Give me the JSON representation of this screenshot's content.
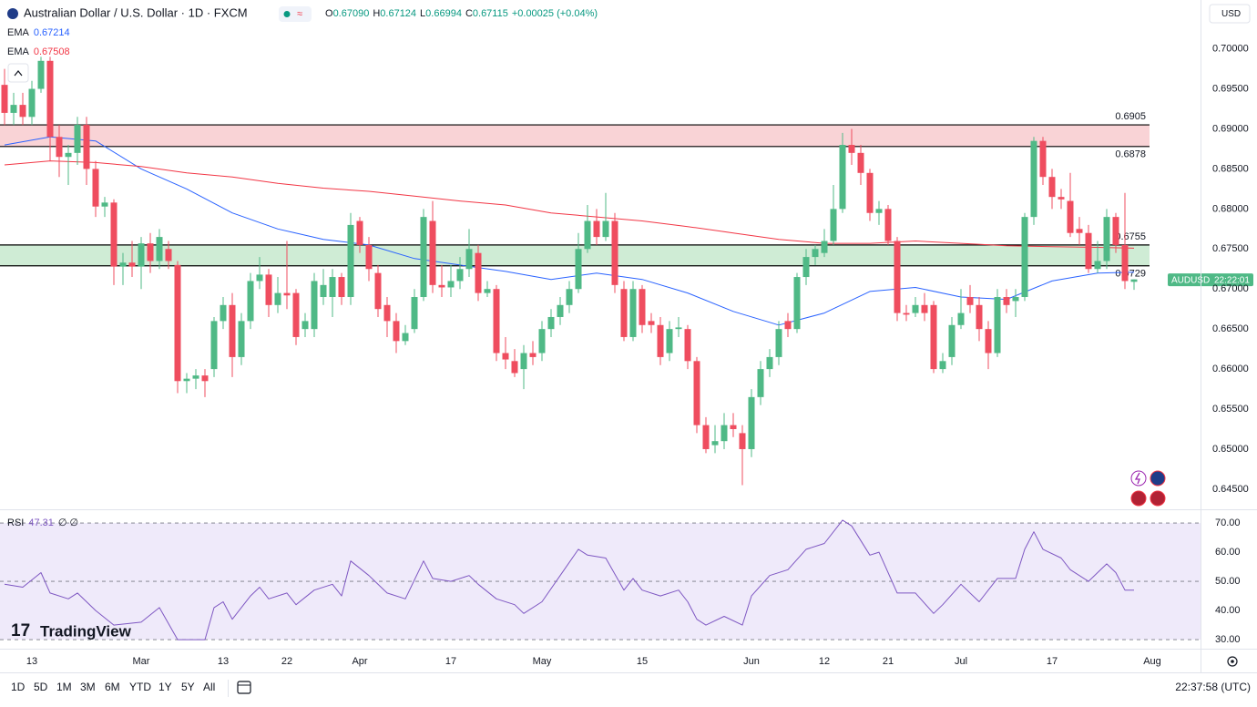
{
  "chart_data": {
    "type": "candlestick",
    "title": "Australian Dollar / U.S. Dollar · 1D · FXCM",
    "ohlc": [
      {
        "label": "O",
        "value": "0.67090"
      },
      {
        "label": "H",
        "value": "0.67124"
      },
      {
        "label": "L",
        "value": "0.66994"
      },
      {
        "label": "C",
        "value": "0.67115"
      }
    ],
    "change": "+0.00025 (+0.04%)",
    "currency": "USD",
    "categories": [
      null,
      null,
      null,
      "13",
      null,
      null,
      null,
      null,
      null,
      null,
      null,
      null,
      null,
      null,
      null,
      "Mar",
      null,
      null,
      null,
      null,
      null,
      null,
      null,
      null,
      "13",
      null,
      null,
      null,
      null,
      null,
      null,
      "22",
      null,
      null,
      null,
      null,
      null,
      null,
      null,
      "Apr",
      null,
      null,
      null,
      null,
      null,
      null,
      null,
      null,
      null,
      "17",
      null,
      null,
      null,
      null,
      null,
      null,
      null,
      null,
      null,
      "May",
      null,
      null,
      null,
      null,
      null,
      null,
      null,
      null,
      null,
      null,
      "15",
      null,
      null,
      null,
      null,
      null,
      null,
      null,
      null,
      null,
      null,
      null,
      "Jun",
      null,
      null,
      null,
      null,
      null,
      null,
      null,
      "12",
      null,
      null,
      null,
      null,
      null,
      null,
      "21",
      null,
      null,
      null,
      null,
      null,
      null,
      null,
      "Jul",
      null,
      null,
      null,
      null,
      null,
      null,
      null,
      null,
      null,
      "17",
      null,
      null,
      null,
      null,
      null,
      null,
      null,
      null,
      null,
      null,
      "Aug"
    ],
    "xlim": [
      -0.5,
      131.3
    ],
    "ylim": [
      0.6426,
      0.7061
    ],
    "yticks": [
      {
        "value": 0.7,
        "label": "0.70000"
      },
      {
        "value": 0.695,
        "label": "0.69500"
      },
      {
        "value": 0.69,
        "label": "0.69000"
      },
      {
        "value": 0.685,
        "label": "0.68500"
      },
      {
        "value": 0.68,
        "label": "0.68000"
      },
      {
        "value": 0.675,
        "label": "0.67500"
      },
      {
        "value": 0.67,
        "label": "0.67000"
      },
      {
        "value": 0.665,
        "label": "0.66500"
      },
      {
        "value": 0.66,
        "label": "0.66000"
      },
      {
        "value": 0.655,
        "label": "0.65500"
      },
      {
        "value": 0.65,
        "label": "0.65000"
      },
      {
        "value": 0.645,
        "label": "0.64500"
      }
    ],
    "open": [
      0.6955,
      0.692,
      0.693,
      0.6915,
      0.695,
      0.6985,
      0.689,
      0.6865,
      0.687,
      0.6905,
      0.685,
      0.6803,
      0.6808,
      0.6728,
      0.6733,
      0.6728,
      0.6757,
      0.6735,
      0.675,
      0.673,
      0.6585,
      0.6588,
      0.6592,
      0.66,
      0.666,
      0.668,
      0.6615,
      0.666,
      0.671,
      0.6718,
      0.668,
      0.6695,
      0.6695,
      0.665,
      0.665,
      0.669,
      0.669,
      0.6715,
      0.669,
      0.6785,
      0.6755,
      0.672,
      0.668,
      0.666,
      0.6635,
      0.665,
      0.669,
      0.6785,
      0.6705,
      0.6702,
      0.671,
      0.6725,
      0.6745,
      0.6695,
      0.67,
      0.662,
      0.661,
      0.66,
      0.662,
      0.662,
      0.665,
      0.6665,
      0.668,
      0.67,
      0.675,
      0.6785,
      0.6765,
      0.6785,
      0.67,
      0.664,
      0.67,
      0.666,
      0.6655,
      0.662,
      0.665,
      0.665,
      0.661,
      0.653,
      0.6505,
      0.651,
      0.653,
      0.652,
      0.65,
      0.6565,
      0.66,
      0.6615,
      0.666,
      0.665,
      0.6715,
      0.674,
      0.6745,
      0.676,
      0.68,
      0.688,
      0.687,
      0.6845,
      0.6795,
      0.68,
      0.676,
      0.667,
      0.667,
      0.668,
      0.668,
      0.66,
      0.6615,
      0.6655,
      0.669,
      0.668,
      0.665,
      0.662,
      0.669,
      0.6685,
      0.669,
      0.679,
      0.6885,
      0.684,
      0.6815,
      0.681,
      0.6775,
      0.677,
      0.6725,
      0.6735,
      0.679,
      0.6755,
      0.6709,
      null,
      null
    ],
    "high": [
      0.6975,
      0.6945,
      0.6945,
      0.696,
      0.699,
      0.699,
      0.6905,
      0.688,
      0.6915,
      0.6915,
      0.686,
      0.6815,
      0.6812,
      0.6745,
      0.676,
      0.6765,
      0.677,
      0.6775,
      0.676,
      0.6735,
      0.6595,
      0.66,
      0.66,
      0.6665,
      0.669,
      0.6695,
      0.667,
      0.672,
      0.674,
      0.6725,
      0.6715,
      0.676,
      0.67,
      0.667,
      0.672,
      0.6725,
      0.6725,
      0.672,
      0.6795,
      0.679,
      0.6765,
      0.673,
      0.669,
      0.667,
      0.6655,
      0.67,
      0.68,
      0.681,
      0.673,
      0.673,
      0.674,
      0.6775,
      0.6755,
      0.671,
      0.6705,
      0.664,
      0.6625,
      0.663,
      0.6635,
      0.666,
      0.6675,
      0.669,
      0.671,
      0.677,
      0.6805,
      0.68,
      0.682,
      0.6795,
      0.671,
      0.671,
      0.6705,
      0.667,
      0.6665,
      0.666,
      0.6665,
      0.6655,
      0.6615,
      0.654,
      0.653,
      0.6545,
      0.6545,
      0.653,
      0.6575,
      0.661,
      0.6625,
      0.666,
      0.667,
      0.672,
      0.675,
      0.6755,
      0.6775,
      0.683,
      0.6895,
      0.69,
      0.688,
      0.685,
      0.681,
      0.6805,
      0.6765,
      0.668,
      0.669,
      0.6695,
      0.6685,
      0.662,
      0.6665,
      0.67,
      0.6705,
      0.669,
      0.666,
      0.67,
      0.67,
      0.67,
      0.6795,
      0.689,
      0.689,
      0.685,
      0.6825,
      0.6845,
      0.679,
      0.678,
      0.676,
      0.68,
      0.6795,
      0.682,
      0.6712,
      null,
      null
    ],
    "low": [
      0.6905,
      0.6905,
      0.6905,
      0.6905,
      0.6945,
      0.686,
      0.684,
      0.683,
      0.6855,
      0.683,
      0.679,
      0.679,
      0.6705,
      0.6705,
      0.6715,
      0.67,
      0.672,
      0.6725,
      0.6725,
      0.657,
      0.657,
      0.6575,
      0.6565,
      0.659,
      0.665,
      0.659,
      0.6605,
      0.665,
      0.67,
      0.6665,
      0.667,
      0.6675,
      0.663,
      0.664,
      0.664,
      0.668,
      0.6665,
      0.668,
      0.668,
      0.6745,
      0.671,
      0.6665,
      0.664,
      0.662,
      0.663,
      0.6645,
      0.6685,
      0.6695,
      0.669,
      0.669,
      0.67,
      0.6715,
      0.6685,
      0.669,
      0.661,
      0.66,
      0.659,
      0.6575,
      0.6605,
      0.661,
      0.664,
      0.6655,
      0.667,
      0.6695,
      0.6745,
      0.6755,
      0.676,
      0.6695,
      0.6635,
      0.6635,
      0.6645,
      0.6645,
      0.6605,
      0.661,
      0.664,
      0.66,
      0.652,
      0.6495,
      0.6495,
      0.65,
      0.6515,
      0.6455,
      0.649,
      0.6555,
      0.659,
      0.6605,
      0.664,
      0.6645,
      0.6705,
      0.673,
      0.674,
      0.6755,
      0.6795,
      0.6855,
      0.683,
      0.6785,
      0.678,
      0.6755,
      0.666,
      0.666,
      0.6665,
      0.666,
      0.6595,
      0.6595,
      0.6605,
      0.665,
      0.667,
      0.6635,
      0.66,
      0.6615,
      0.667,
      0.6665,
      0.6685,
      0.678,
      0.683,
      0.68,
      0.68,
      0.6765,
      0.6755,
      0.672,
      0.672,
      0.6725,
      0.6745,
      0.67,
      0.6699,
      null,
      null
    ],
    "close": [
      0.692,
      0.693,
      0.6915,
      0.695,
      0.6985,
      0.689,
      0.6865,
      0.687,
      0.6905,
      0.685,
      0.6803,
      0.6808,
      0.6728,
      0.6733,
      0.6728,
      0.6757,
      0.6735,
      0.6765,
      0.6735,
      0.6585,
      0.6588,
      0.6592,
      0.6585,
      0.666,
      0.668,
      0.6615,
      0.666,
      0.671,
      0.6718,
      0.668,
      0.6695,
      0.6692,
      0.664,
      0.666,
      0.671,
      0.6705,
      0.6715,
      0.669,
      0.678,
      0.6755,
      0.6725,
      0.6675,
      0.666,
      0.6635,
      0.6645,
      0.669,
      0.679,
      0.6705,
      0.6702,
      0.671,
      0.6725,
      0.675,
      0.6695,
      0.67,
      0.662,
      0.6612,
      0.6595,
      0.662,
      0.6615,
      0.665,
      0.6665,
      0.668,
      0.67,
      0.675,
      0.6785,
      0.6765,
      0.6785,
      0.6705,
      0.664,
      0.67,
      0.6655,
      0.6655,
      0.6615,
      0.665,
      0.6652,
      0.661,
      0.653,
      0.65,
      0.651,
      0.653,
      0.6525,
      0.65,
      0.6565,
      0.66,
      0.6615,
      0.665,
      0.665,
      0.6715,
      0.674,
      0.675,
      0.676,
      0.68,
      0.688,
      0.687,
      0.6845,
      0.6795,
      0.68,
      0.676,
      0.667,
      0.6668,
      0.668,
      0.667,
      0.66,
      0.661,
      0.6655,
      0.667,
      0.668,
      0.665,
      0.662,
      0.669,
      0.668,
      0.669,
      0.679,
      0.6885,
      0.684,
      0.6815,
      0.6812,
      0.677,
      0.677,
      0.6725,
      0.6735,
      0.679,
      0.6755,
      0.671,
      0.6712,
      null,
      null
    ],
    "up_color": "#4fb986",
    "down_color": "#ef4d5f",
    "overlays": [
      {
        "name": "EMA",
        "value_label": "0.67214",
        "color": "#2962ff",
        "x": [
          0,
          5,
          10,
          15,
          20,
          25,
          30,
          35,
          40,
          45,
          50,
          55,
          60,
          65,
          70,
          75,
          80,
          85,
          90,
          95,
          100,
          105,
          110,
          115,
          120,
          124
        ],
        "values": [
          0.688,
          0.689,
          0.6885,
          0.685,
          0.6825,
          0.6795,
          0.6775,
          0.6762,
          0.6755,
          0.6738,
          0.673,
          0.6722,
          0.6712,
          0.672,
          0.6712,
          0.6695,
          0.6672,
          0.6655,
          0.667,
          0.6697,
          0.6702,
          0.669,
          0.6687,
          0.671,
          0.672,
          0.6721
        ]
      },
      {
        "name": "EMA",
        "value_label": "0.67508",
        "color": "#f23645",
        "x": [
          0,
          5,
          10,
          15,
          20,
          25,
          30,
          35,
          40,
          45,
          50,
          55,
          60,
          65,
          70,
          75,
          80,
          85,
          90,
          95,
          100,
          105,
          110,
          115,
          120,
          124
        ],
        "values": [
          0.6855,
          0.686,
          0.6858,
          0.6853,
          0.6845,
          0.684,
          0.6832,
          0.6826,
          0.6822,
          0.6816,
          0.681,
          0.6805,
          0.6795,
          0.679,
          0.6785,
          0.6778,
          0.677,
          0.6762,
          0.6757,
          0.6757,
          0.676,
          0.6757,
          0.6754,
          0.6753,
          0.6752,
          0.6751
        ]
      }
    ],
    "zones": [
      {
        "top": 0.6905,
        "bottom": 0.6878,
        "color": "#f9d3d6"
      },
      {
        "top": 0.6755,
        "bottom": 0.6729,
        "color": "#cfecd5"
      }
    ],
    "price_label": {
      "symbol": "AUDUSD",
      "countdown": "22:22:01",
      "value": 0.67115
    },
    "rsi": {
      "name": "RSI",
      "value_label": "47.31",
      "extra": "∅ ∅",
      "color": "#7e57c2",
      "band_color": "#efeafa",
      "ylim": [
        26.9,
        74.4
      ],
      "yticks": [
        {
          "value": 70,
          "label": "70.00"
        },
        {
          "value": 60,
          "label": "60.00"
        },
        {
          "value": 50,
          "label": "50.00"
        },
        {
          "value": 40,
          "label": "40.00"
        },
        {
          "value": 30,
          "label": "30.00"
        }
      ],
      "levels": [
        70,
        50,
        30
      ],
      "band": [
        30,
        70
      ],
      "x": [
        0,
        2,
        4,
        5,
        7,
        8,
        10,
        12,
        15,
        17,
        19,
        21,
        22,
        23,
        24,
        25,
        27,
        28,
        29,
        31,
        32,
        34,
        36,
        37,
        38,
        40,
        42,
        44,
        46,
        47,
        49,
        51,
        52,
        54,
        56,
        57,
        59,
        61,
        63,
        64,
        66,
        68,
        69,
        70,
        72,
        74,
        75,
        76,
        77,
        79,
        81,
        82,
        84,
        86,
        88,
        90,
        92,
        93,
        95,
        96,
        98,
        100,
        102,
        103,
        105,
        107,
        109,
        111,
        112,
        113,
        114,
        116,
        117,
        119,
        121,
        122,
        123,
        124
      ],
      "values": [
        49,
        48,
        53,
        46,
        44,
        46,
        40,
        35,
        36,
        41,
        30,
        30,
        30,
        41,
        43,
        37,
        45,
        48,
        44,
        46,
        42,
        47,
        49,
        45,
        57,
        52,
        46,
        44,
        57,
        51,
        50,
        52,
        49,
        44,
        42,
        39,
        43,
        52,
        61,
        59,
        58,
        47,
        51,
        47,
        45,
        47,
        43,
        37,
        35,
        38,
        35,
        45,
        52,
        54,
        61,
        63,
        71,
        69,
        59,
        60,
        46,
        46,
        39,
        42,
        49,
        43,
        51,
        51,
        61,
        67,
        61,
        58,
        54,
        50,
        56,
        53,
        47,
        47
      ]
    },
    "timeframes": [
      "1D",
      "5D",
      "1M",
      "3M",
      "6M",
      "YTD",
      "1Y",
      "5Y",
      "All"
    ],
    "clock": "22:37:58 (UTC)",
    "logo": "TradingView",
    "grid": false
  }
}
